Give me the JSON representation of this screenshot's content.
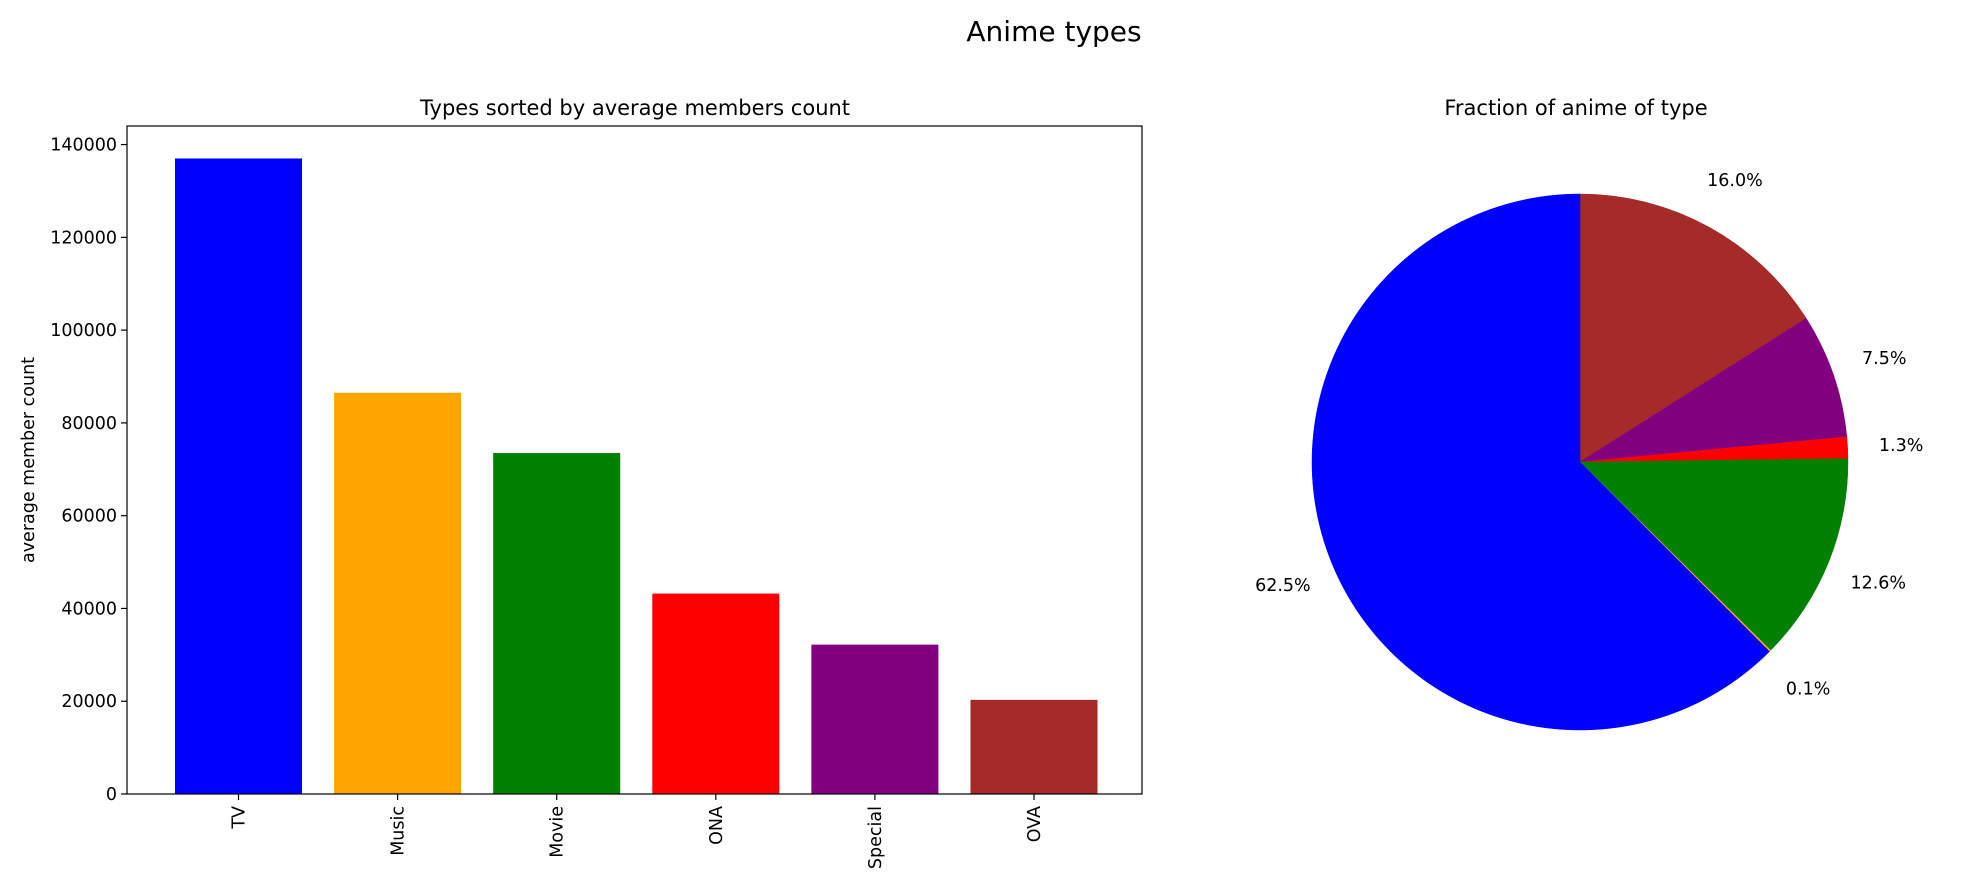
{
  "figure": {
    "title": "Anime types"
  },
  "chart_data": [
    {
      "type": "bar",
      "title": "Types sorted by average members count",
      "xlabel": "",
      "ylabel": "average member count",
      "categories": [
        "TV",
        "Music",
        "Movie",
        "ONA",
        "Special",
        "OVA"
      ],
      "values": [
        137000,
        86500,
        73500,
        43200,
        32200,
        20300
      ],
      "colors": [
        "#0000ff",
        "#ffa500",
        "#008000",
        "#ff0000",
        "#800080",
        "#a52a2a"
      ],
      "ylim": [
        0,
        144000
      ],
      "yticks": [
        0,
        20000,
        40000,
        60000,
        80000,
        100000,
        120000,
        140000
      ],
      "ytick_labels": [
        "0",
        "20000",
        "40000",
        "60000",
        "80000",
        "100000",
        "120000",
        "140000"
      ],
      "xtick_rotation": 90,
      "grid": false
    },
    {
      "type": "pie",
      "title": "Fraction of anime of type",
      "slices": [
        {
          "value": 16.0,
          "label": "16.0%",
          "color": "#a52a2a"
        },
        {
          "value": 7.5,
          "label": "7.5%",
          "color": "#800080"
        },
        {
          "value": 1.3,
          "label": "1.3%",
          "color": "#ff0000"
        },
        {
          "value": 12.6,
          "label": "12.6%",
          "color": "#008000"
        },
        {
          "value": 0.1,
          "label": "0.1%",
          "color": "#ffa500"
        },
        {
          "value": 62.5,
          "label": "62.5%",
          "color": "#0000ff"
        }
      ],
      "start_angle_deg": 90,
      "direction": "clockwise",
      "legend": false
    }
  ]
}
